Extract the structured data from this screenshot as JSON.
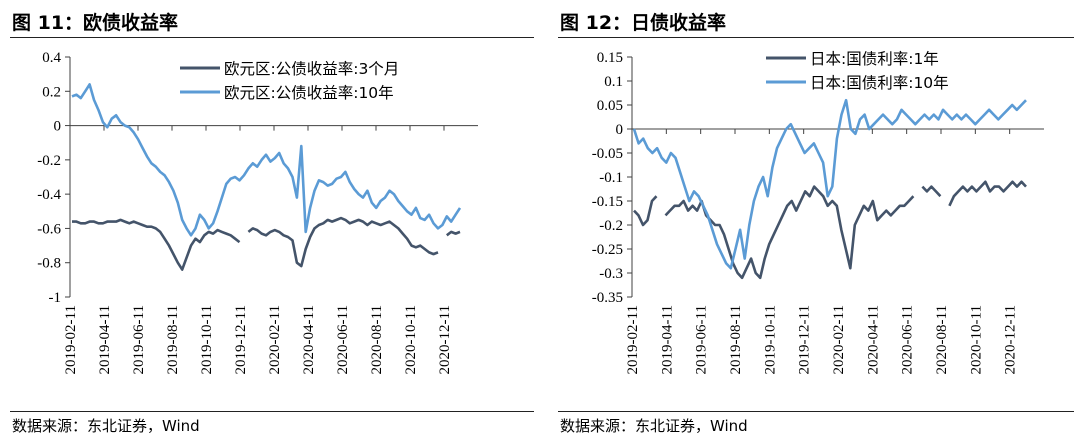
{
  "source_left": "数据来源：东北证券，Wind",
  "source_right": "数据来源：东北证券，Wind",
  "colors": {
    "dark": "#44546A",
    "light": "#5B9BD5",
    "axis": "#404040"
  },
  "chart_data": [
    {
      "type": "line",
      "title": "图 11：欧债收益率",
      "ylim": [
        -1,
        0.4
      ],
      "yticks": [
        0.4,
        0.2,
        0,
        -0.2,
        -0.4,
        -0.6,
        -0.8,
        -1
      ],
      "ytick_labels": [
        "0.4",
        "0.2",
        "0",
        "-0.2",
        "-0.4",
        "-0.6",
        "-0.8",
        "-1"
      ],
      "xticks": [
        "2019-02-11",
        "2019-04-11",
        "2019-06-11",
        "2019-08-11",
        "2019-10-11",
        "2019-12-11",
        "2020-02-11",
        "2020-04-11",
        "2020-06-11",
        "2020-08-11",
        "2020-10-11",
        "2020-12-11"
      ],
      "legend": "top-right",
      "series": [
        {
          "name": "欧元区:公债收益率:3个月",
          "color": "#44546A",
          "values": [
            -0.56,
            -0.56,
            -0.57,
            -0.57,
            -0.56,
            -0.56,
            -0.57,
            -0.57,
            -0.56,
            -0.56,
            -0.56,
            -0.55,
            -0.56,
            -0.57,
            -0.56,
            -0.57,
            -0.58,
            -0.59,
            -0.59,
            -0.6,
            -0.62,
            -0.66,
            -0.7,
            -0.75,
            -0.8,
            -0.84,
            -0.77,
            -0.7,
            -0.66,
            -0.68,
            -0.64,
            -0.62,
            -0.63,
            -0.61,
            -0.62,
            -0.63,
            -0.64,
            -0.66,
            -0.68,
            null,
            -0.62,
            -0.6,
            -0.61,
            -0.63,
            -0.64,
            -0.62,
            -0.61,
            -0.62,
            -0.64,
            -0.65,
            -0.67,
            -0.8,
            -0.82,
            -0.72,
            -0.65,
            -0.6,
            -0.58,
            -0.57,
            -0.55,
            -0.56,
            -0.55,
            -0.54,
            -0.55,
            -0.57,
            -0.56,
            -0.55,
            -0.56,
            -0.58,
            -0.56,
            -0.57,
            -0.58,
            -0.57,
            -0.56,
            -0.58,
            -0.6,
            -0.63,
            -0.66,
            -0.7,
            -0.71,
            -0.7,
            -0.72,
            -0.74,
            -0.75,
            -0.74,
            null,
            -0.64,
            -0.62,
            -0.63,
            -0.62
          ]
        },
        {
          "name": "欧元区:公债收益率:10年",
          "color": "#5B9BD5",
          "values": [
            0.17,
            0.18,
            0.16,
            0.2,
            0.24,
            0.15,
            0.09,
            0.02,
            -0.01,
            0.04,
            0.06,
            0.02,
            0.0,
            -0.01,
            -0.04,
            -0.08,
            -0.13,
            -0.18,
            -0.22,
            -0.24,
            -0.27,
            -0.29,
            -0.33,
            -0.38,
            -0.45,
            -0.55,
            -0.6,
            -0.64,
            -0.6,
            -0.52,
            -0.55,
            -0.6,
            -0.57,
            -0.5,
            -0.42,
            -0.34,
            -0.31,
            -0.3,
            -0.32,
            -0.29,
            -0.25,
            -0.22,
            -0.24,
            -0.2,
            -0.17,
            -0.21,
            -0.19,
            -0.16,
            -0.22,
            -0.25,
            -0.3,
            -0.42,
            -0.12,
            -0.62,
            -0.48,
            -0.38,
            -0.32,
            -0.33,
            -0.35,
            -0.34,
            -0.31,
            -0.3,
            -0.27,
            -0.33,
            -0.37,
            -0.4,
            -0.42,
            -0.38,
            -0.45,
            -0.48,
            -0.44,
            -0.42,
            -0.38,
            -0.4,
            -0.44,
            -0.47,
            -0.5,
            -0.52,
            -0.48,
            -0.54,
            -0.55,
            -0.52,
            -0.57,
            -0.6,
            -0.58,
            -0.53,
            -0.56,
            -0.52,
            -0.48
          ]
        }
      ]
    },
    {
      "type": "line",
      "title": "图 12：日债收益率",
      "ylim": [
        -0.35,
        0.15
      ],
      "yticks": [
        0.15,
        0.1,
        0.05,
        0,
        -0.05,
        -0.1,
        -0.15,
        -0.2,
        -0.25,
        -0.3,
        -0.35
      ],
      "ytick_labels": [
        "0.15",
        "0.1",
        "0.05",
        "0",
        "-0.05",
        "-0.1",
        "-0.15",
        "-0.2",
        "-0.25",
        "-0.3",
        "-0.35"
      ],
      "xticks": [
        "2019-02-11",
        "2019-04-11",
        "2019-06-11",
        "2019-08-11",
        "2019-10-11",
        "2019-12-11",
        "2020-02-11",
        "2020-04-11",
        "2020-06-11",
        "2020-08-11",
        "2020-10-11",
        "2020-12-11"
      ],
      "legend": "top-right",
      "series": [
        {
          "name": "日本:国债利率:1年",
          "color": "#44546A",
          "values": [
            -0.17,
            -0.18,
            -0.2,
            -0.19,
            -0.15,
            -0.14,
            null,
            -0.18,
            -0.17,
            -0.16,
            -0.16,
            -0.15,
            -0.17,
            -0.16,
            -0.17,
            -0.15,
            -0.18,
            -0.19,
            -0.2,
            -0.2,
            -0.22,
            -0.25,
            -0.28,
            -0.3,
            -0.31,
            -0.29,
            -0.27,
            -0.3,
            -0.31,
            -0.27,
            -0.24,
            -0.22,
            -0.2,
            -0.18,
            -0.16,
            -0.15,
            -0.17,
            -0.15,
            -0.13,
            -0.14,
            -0.12,
            -0.13,
            -0.14,
            -0.16,
            -0.15,
            -0.16,
            -0.21,
            -0.25,
            -0.29,
            -0.2,
            -0.18,
            -0.16,
            -0.17,
            -0.15,
            -0.19,
            -0.18,
            -0.17,
            -0.18,
            -0.17,
            -0.16,
            -0.16,
            -0.15,
            -0.14,
            null,
            -0.12,
            -0.13,
            -0.12,
            -0.13,
            -0.14,
            null,
            -0.16,
            -0.14,
            -0.13,
            -0.12,
            -0.13,
            -0.12,
            -0.13,
            -0.12,
            -0.11,
            -0.13,
            -0.12,
            -0.12,
            -0.13,
            -0.12,
            -0.11,
            -0.12,
            -0.11,
            -0.12
          ]
        },
        {
          "name": "日本:国债利率:10年",
          "color": "#5B9BD5",
          "values": [
            0.0,
            -0.03,
            -0.02,
            -0.04,
            -0.05,
            -0.04,
            -0.06,
            -0.07,
            -0.05,
            -0.06,
            -0.09,
            -0.12,
            -0.15,
            -0.13,
            -0.14,
            -0.16,
            -0.18,
            -0.21,
            -0.24,
            -0.26,
            -0.28,
            -0.29,
            -0.25,
            -0.21,
            -0.27,
            -0.2,
            -0.15,
            -0.12,
            -0.1,
            -0.14,
            -0.08,
            -0.04,
            -0.02,
            0.0,
            0.01,
            -0.01,
            -0.03,
            -0.05,
            -0.04,
            -0.03,
            -0.05,
            -0.07,
            -0.14,
            -0.12,
            -0.02,
            0.03,
            0.06,
            0.0,
            -0.01,
            0.02,
            0.03,
            0.0,
            0.01,
            0.02,
            0.03,
            0.02,
            0.01,
            0.02,
            0.04,
            0.03,
            0.02,
            0.01,
            0.02,
            0.03,
            0.02,
            0.03,
            0.02,
            0.04,
            0.03,
            0.02,
            0.03,
            0.02,
            0.03,
            0.02,
            0.01,
            0.02,
            0.03,
            0.04,
            0.03,
            0.02,
            0.03,
            0.04,
            0.05,
            0.04,
            0.05,
            0.06
          ]
        }
      ]
    }
  ]
}
